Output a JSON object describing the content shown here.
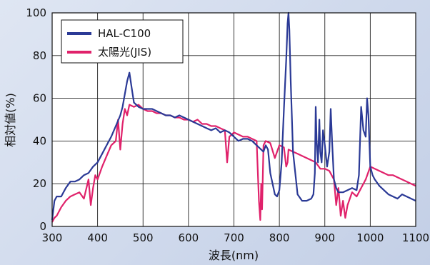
{
  "chart_data": {
    "type": "line",
    "title": "",
    "xlabel": "波長(nm)",
    "ylabel": "相対値(%)",
    "xlim": [
      300,
      1100
    ],
    "ylim": [
      0,
      100
    ],
    "x_ticks": [
      300,
      400,
      500,
      600,
      700,
      800,
      900,
      1000,
      1100
    ],
    "y_ticks": [
      0,
      20,
      40,
      60,
      80,
      100
    ],
    "grid": true,
    "legend_position": "top-left",
    "series": [
      {
        "name": "HAL-C100",
        "color": "#2b3a96",
        "x": [
          300,
          305,
          310,
          320,
          330,
          340,
          350,
          360,
          370,
          380,
          390,
          400,
          410,
          420,
          430,
          440,
          450,
          455,
          460,
          465,
          470,
          475,
          480,
          490,
          500,
          510,
          520,
          530,
          540,
          550,
          560,
          570,
          580,
          590,
          600,
          610,
          620,
          630,
          640,
          650,
          660,
          670,
          680,
          690,
          700,
          710,
          720,
          730,
          740,
          750,
          755,
          760,
          765,
          770,
          775,
          780,
          790,
          795,
          800,
          805,
          810,
          815,
          818,
          820,
          822,
          825,
          830,
          840,
          850,
          860,
          870,
          875,
          878,
          880,
          882,
          885,
          888,
          890,
          893,
          896,
          900,
          905,
          910,
          913,
          916,
          920,
          925,
          930,
          940,
          950,
          960,
          970,
          975,
          980,
          985,
          990,
          993,
          996,
          1000,
          1005,
          1010,
          1020,
          1030,
          1040,
          1050,
          1060,
          1070,
          1080,
          1090,
          1100
        ],
        "y": [
          3,
          12,
          14,
          14,
          18,
          21,
          21,
          22,
          24,
          25,
          28,
          30,
          34,
          38,
          42,
          47,
          52,
          56,
          62,
          68,
          72,
          65,
          58,
          56,
          55,
          55,
          55,
          54,
          53,
          52,
          52,
          51,
          52,
          51,
          50,
          49,
          48,
          47,
          46,
          45,
          46,
          44,
          45,
          44,
          42,
          40,
          41,
          41,
          40,
          38,
          37,
          36,
          35,
          38,
          36,
          25,
          15,
          14,
          17,
          30,
          55,
          78,
          95,
          100,
          92,
          68,
          35,
          15,
          12,
          12,
          13,
          15,
          25,
          56,
          40,
          30,
          50,
          35,
          30,
          45,
          38,
          28,
          35,
          55,
          40,
          22,
          18,
          16,
          16,
          17,
          18,
          17,
          24,
          56,
          45,
          42,
          60,
          52,
          28,
          24,
          22,
          19,
          17,
          15,
          14,
          13,
          15,
          14,
          13,
          12
        ]
      },
      {
        "name": "太陽光(JIS)",
        "color": "#e0226b",
        "x": [
          300,
          305,
          310,
          320,
          330,
          340,
          350,
          360,
          370,
          380,
          385,
          390,
          395,
          400,
          410,
          420,
          430,
          440,
          445,
          450,
          455,
          460,
          465,
          470,
          480,
          490,
          500,
          510,
          520,
          530,
          540,
          550,
          560,
          570,
          580,
          590,
          600,
          610,
          620,
          630,
          640,
          650,
          660,
          670,
          680,
          685,
          690,
          700,
          710,
          720,
          730,
          740,
          750,
          755,
          758,
          760,
          762,
          765,
          770,
          780,
          790,
          800,
          810,
          815,
          818,
          820,
          830,
          840,
          850,
          860,
          870,
          880,
          890,
          900,
          910,
          920,
          925,
          930,
          935,
          940,
          945,
          950,
          960,
          970,
          980,
          990,
          1000,
          1010,
          1020,
          1030,
          1040,
          1050,
          1060,
          1070,
          1080,
          1090,
          1100
        ],
        "y": [
          2,
          4,
          5,
          9,
          12,
          14,
          15,
          16,
          13,
          22,
          10,
          18,
          24,
          22,
          28,
          33,
          38,
          40,
          50,
          36,
          48,
          55,
          52,
          57,
          56,
          57,
          55,
          54,
          54,
          53,
          53,
          52,
          52,
          51,
          51,
          50,
          50,
          49,
          50,
          48,
          48,
          47,
          47,
          46,
          45,
          30,
          42,
          44,
          43,
          42,
          42,
          41,
          40,
          12,
          3,
          20,
          8,
          38,
          40,
          39,
          32,
          38,
          37,
          28,
          30,
          36,
          35,
          34,
          33,
          32,
          31,
          30,
          27,
          27,
          26,
          22,
          10,
          18,
          5,
          12,
          4,
          10,
          16,
          14,
          18,
          22,
          28,
          27,
          26,
          25,
          24,
          24,
          23,
          22,
          21,
          20,
          19
        ]
      }
    ]
  }
}
